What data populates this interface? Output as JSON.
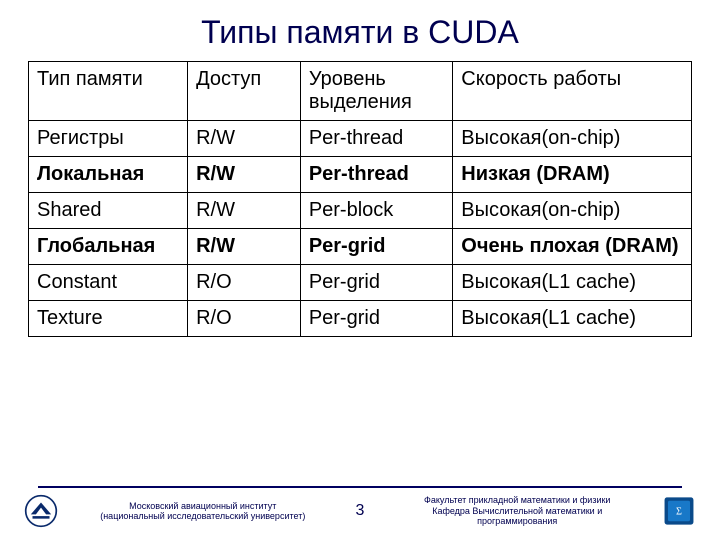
{
  "title": "Типы памяти в CUDA",
  "table": {
    "columns": [
      "Тип памяти",
      "Доступ",
      "Уровень выделения",
      "Скорость работы"
    ],
    "rows": [
      {
        "cells": [
          "Регистры",
          "R/W",
          "Per-thread",
          "Высокая(on-chip)"
        ],
        "bold": false
      },
      {
        "cells": [
          "Локальная",
          "R/W",
          "Per-thread",
          "Низкая (DRAM)"
        ],
        "bold": true
      },
      {
        "cells": [
          "Shared",
          "R/W",
          "Per-block",
          "Высокая(on-chip)"
        ],
        "bold": false
      },
      {
        "cells": [
          "Глобальная",
          "R/W",
          "Per-grid",
          "Очень плохая (DRAM)"
        ],
        "bold": true
      },
      {
        "cells": [
          "Constant",
          "R/O",
          "Per-grid",
          "Высокая(L1 cache)"
        ],
        "bold": false
      },
      {
        "cells": [
          "Texture",
          "R/O",
          "Per-grid",
          "Высокая(L1 cache)"
        ],
        "bold": false
      }
    ]
  },
  "footer": {
    "left": "Московский авиационный институт\n(национальный исследовательский университет)",
    "page": "3",
    "right": "Факультет прикладной математики и физики\nКафедра Вычислительной математики и\nпрограммирования"
  },
  "colors": {
    "heading": "#000050",
    "border": "#000000",
    "footer_line": "#000060"
  }
}
